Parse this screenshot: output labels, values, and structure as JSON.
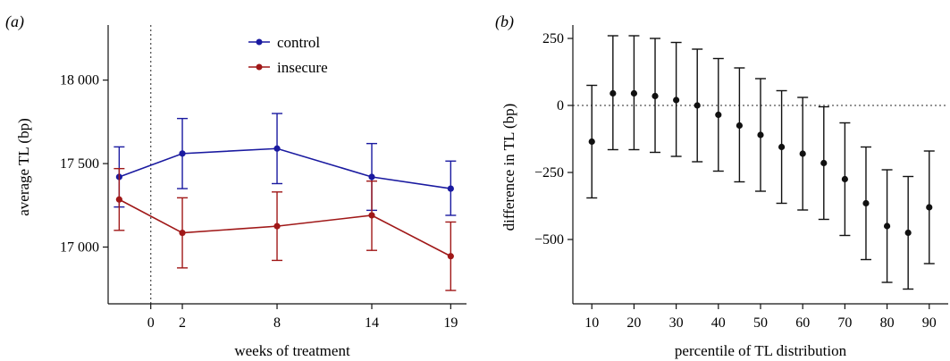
{
  "chart_data": [
    {
      "panel_label": "(a)",
      "type": "line",
      "xlabel": "weeks of treatment",
      "ylabel": "average TL (bp)",
      "x_ticks": [
        0,
        2,
        8,
        14,
        19
      ],
      "x_tick_labels": [
        "0",
        "2",
        "8",
        "14",
        "19"
      ],
      "y_ticks": [
        17000,
        17500,
        18000
      ],
      "y_tick_labels": [
        "17 000",
        "17 500",
        "18 000"
      ],
      "xlim": [
        -2.7,
        20
      ],
      "ylim": [
        16660,
        18330
      ],
      "baseline_marker_x": 0,
      "legend_position": "top-center",
      "series": [
        {
          "name": "control",
          "color": "#1a1aa0",
          "points": [
            {
              "x": -2,
              "y": 17420,
              "lo": 17240,
              "hi": 17600
            },
            {
              "x": 2,
              "y": 17560,
              "lo": 17350,
              "hi": 17770
            },
            {
              "x": 8,
              "y": 17590,
              "lo": 17380,
              "hi": 17800
            },
            {
              "x": 14,
              "y": 17420,
              "lo": 17220,
              "hi": 17620
            },
            {
              "x": 19,
              "y": 17350,
              "lo": 17190,
              "hi": 17515
            }
          ]
        },
        {
          "name": "insecure",
          "color": "#a01818",
          "points": [
            {
              "x": -2,
              "y": 17285,
              "lo": 17100,
              "hi": 17470
            },
            {
              "x": 2,
              "y": 17085,
              "lo": 16875,
              "hi": 17295
            },
            {
              "x": 8,
              "y": 17125,
              "lo": 16920,
              "hi": 17330
            },
            {
              "x": 14,
              "y": 17190,
              "lo": 16980,
              "hi": 17395
            },
            {
              "x": 19,
              "y": 16945,
              "lo": 16740,
              "hi": 17150
            }
          ]
        }
      ]
    },
    {
      "panel_label": "(b)",
      "type": "scatter",
      "xlabel": "percentile of TL distribution",
      "ylabel": "difference in TL (bp)",
      "x_ticks": [
        10,
        20,
        30,
        40,
        50,
        60,
        70,
        80,
        90
      ],
      "x_tick_labels": [
        "10",
        "20",
        "30",
        "40",
        "50",
        "60",
        "70",
        "80",
        "90"
      ],
      "y_ticks": [
        -500,
        -250,
        0,
        250
      ],
      "y_tick_labels": [
        "−500",
        "−250",
        "0",
        "250"
      ],
      "xlim": [
        5.5,
        94.5
      ],
      "ylim": [
        -740,
        300
      ],
      "reference_line_y": 0,
      "color": "#111111",
      "points": [
        {
          "x": 10,
          "y": -135,
          "lo": -345,
          "hi": 75
        },
        {
          "x": 15,
          "y": 45,
          "lo": -165,
          "hi": 260
        },
        {
          "x": 20,
          "y": 45,
          "lo": -165,
          "hi": 260
        },
        {
          "x": 25,
          "y": 35,
          "lo": -175,
          "hi": 250
        },
        {
          "x": 30,
          "y": 20,
          "lo": -190,
          "hi": 235
        },
        {
          "x": 35,
          "y": 0,
          "lo": -210,
          "hi": 210
        },
        {
          "x": 40,
          "y": -35,
          "lo": -245,
          "hi": 175
        },
        {
          "x": 45,
          "y": -75,
          "lo": -285,
          "hi": 140
        },
        {
          "x": 50,
          "y": -110,
          "lo": -320,
          "hi": 100
        },
        {
          "x": 55,
          "y": -155,
          "lo": -365,
          "hi": 55
        },
        {
          "x": 60,
          "y": -180,
          "lo": -390,
          "hi": 30
        },
        {
          "x": 65,
          "y": -215,
          "lo": -425,
          "hi": -5
        },
        {
          "x": 70,
          "y": -275,
          "lo": -485,
          "hi": -65
        },
        {
          "x": 75,
          "y": -365,
          "lo": -575,
          "hi": -155
        },
        {
          "x": 80,
          "y": -450,
          "lo": -660,
          "hi": -240
        },
        {
          "x": 85,
          "y": -475,
          "lo": -685,
          "hi": -265
        },
        {
          "x": 90,
          "y": -380,
          "lo": -590,
          "hi": -170
        }
      ]
    }
  ]
}
